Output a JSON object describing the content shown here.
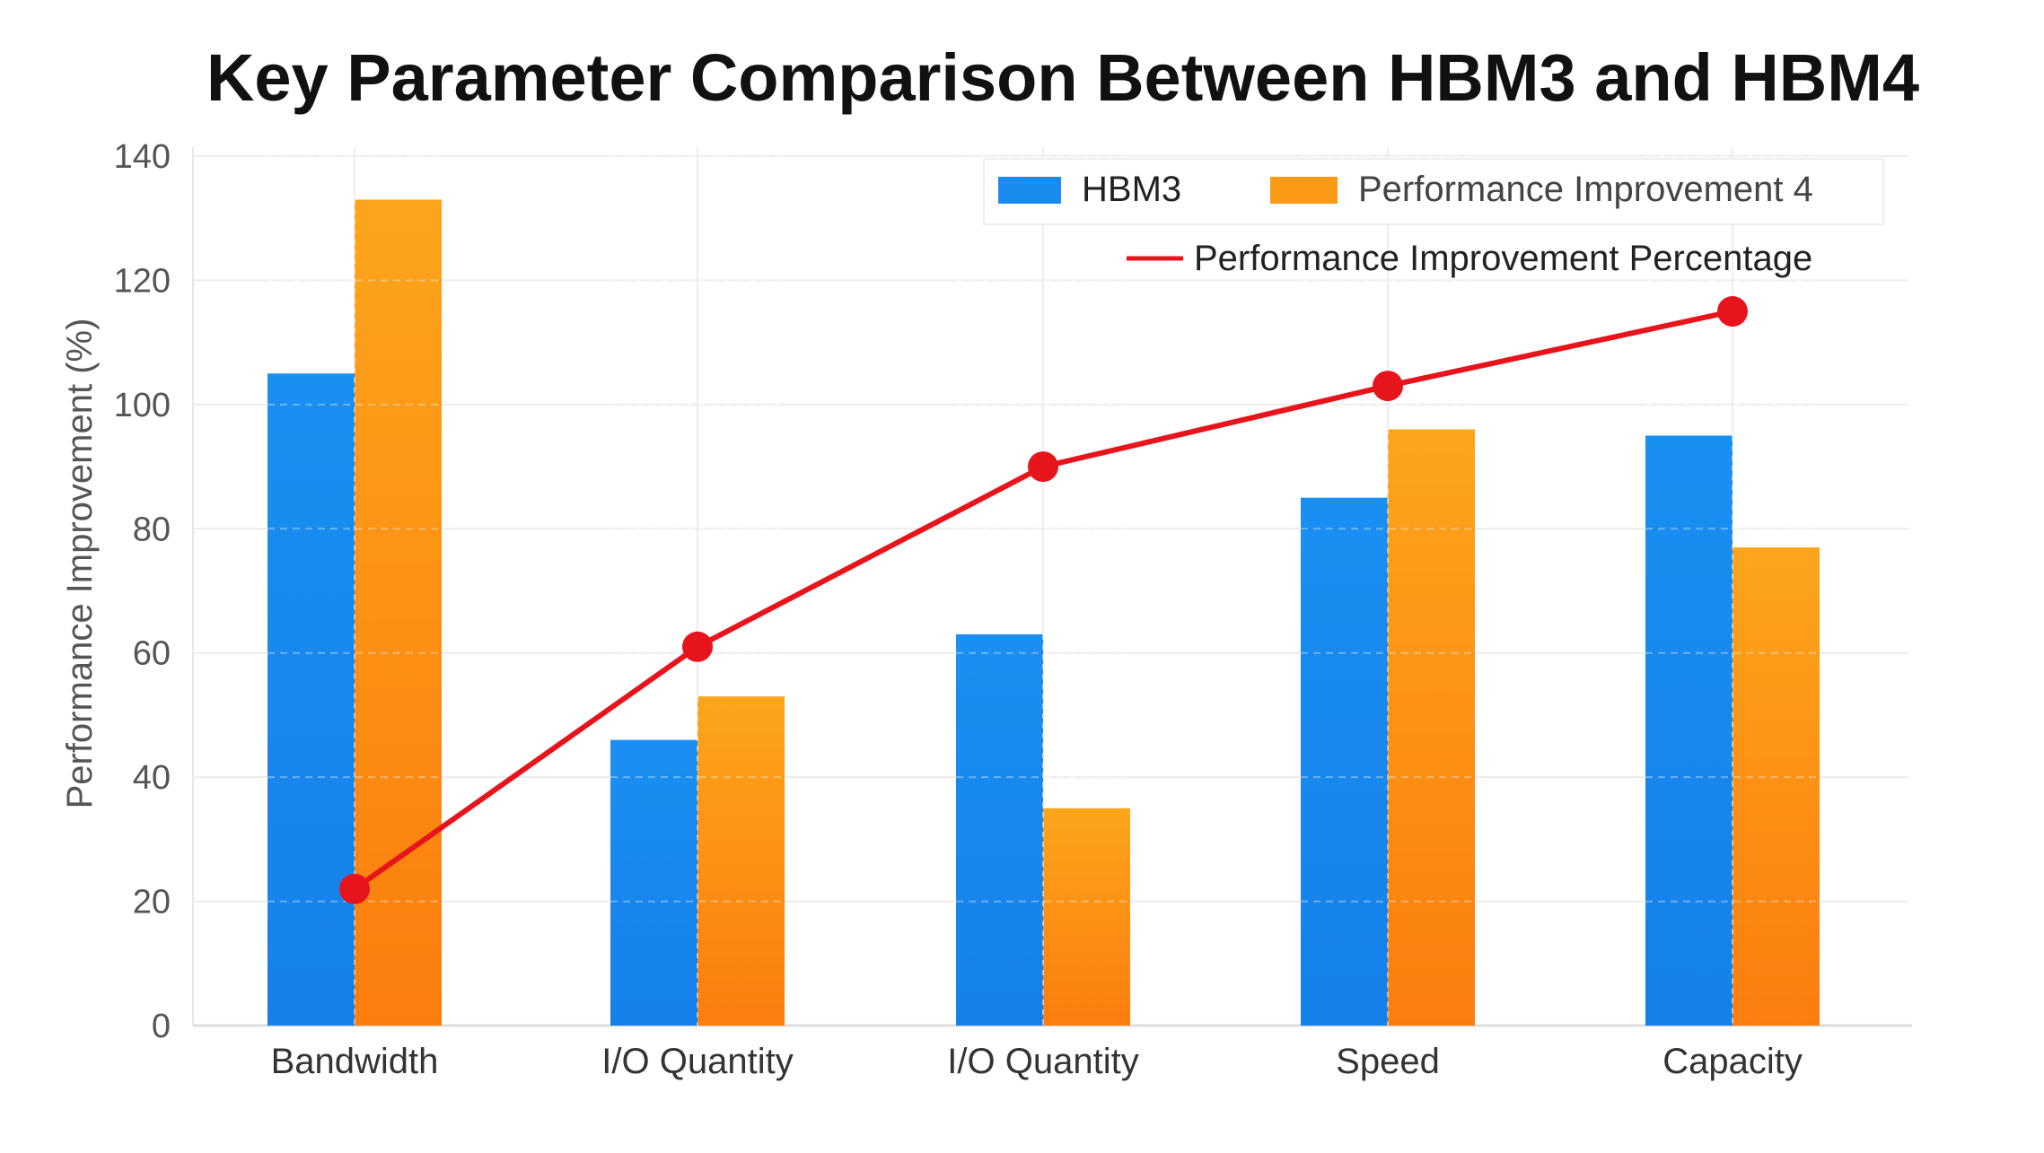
{
  "chart_data": {
    "type": "bar",
    "title": "Key Parameter Comparison Between HBM3 and HBM4",
    "xlabel": "",
    "ylabel": "Performance Improvement (%)",
    "ylim": [
      0,
      140
    ],
    "yticks": [
      0,
      20,
      40,
      60,
      80,
      100,
      120,
      140
    ],
    "grid": true,
    "legend_position": "top-right",
    "categories": [
      "Bandwidth",
      "I/O Quantity",
      "I/O Quantity",
      "Speed",
      "Capacity"
    ],
    "series": [
      {
        "name": "HBM3",
        "type": "bar",
        "color": "#1a8cf0",
        "values": [
          105,
          46,
          63,
          85,
          95
        ]
      },
      {
        "name": "Performance Improvement 4",
        "type": "bar",
        "color": "#fb9a14",
        "values": [
          133,
          53,
          35,
          96,
          77
        ]
      },
      {
        "name": "Performance Improvement Percentage",
        "type": "line",
        "color": "#e8141c",
        "values": [
          22,
          61,
          90,
          103,
          115
        ]
      }
    ]
  }
}
